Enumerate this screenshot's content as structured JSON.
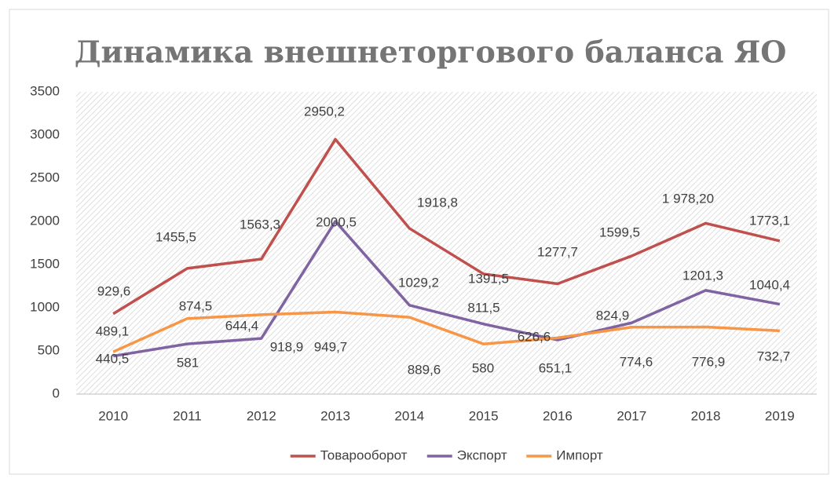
{
  "chart_data": {
    "type": "line",
    "title": "Динамика внешнеторгового баланса ЯО",
    "categories": [
      "2010",
      "2011",
      "2012",
      "2013",
      "2014",
      "2015",
      "2016",
      "2017",
      "2018",
      "2019"
    ],
    "series": [
      {
        "name": "Товарооборот",
        "color": "#c0504d",
        "values": [
          929.6,
          1455.5,
          1563.3,
          2950.2,
          1918.8,
          1391.5,
          1277.7,
          1599.5,
          1978.2,
          1773.1
        ],
        "value_labels": [
          "929,6",
          "1455,5",
          "1563,3",
          "2950,2",
          "1918,8",
          "1391,5",
          "1277,7",
          "1599,5",
          "1 978,20",
          "1773,1"
        ]
      },
      {
        "name": "Экспорт",
        "color": "#8064a2",
        "values": [
          440.5,
          581,
          644.4,
          2000.5,
          1029.2,
          811.5,
          626.6,
          824.9,
          1201.3,
          1040.4
        ],
        "value_labels": [
          "440,5",
          "581",
          "644,4",
          "2000,5",
          "1029,2",
          "811,5",
          "626,6",
          "824,9",
          "1201,3",
          "1040,4"
        ]
      },
      {
        "name": "Импорт",
        "color": "#f79646",
        "values": [
          489.1,
          874.5,
          918.9,
          949.7,
          889.6,
          580,
          651.1,
          774.6,
          776.9,
          732.7
        ],
        "value_labels": [
          "489,1",
          "874,5",
          "918,9",
          "949,7",
          "889,6",
          "580",
          "651,1",
          "774,6",
          "776,9",
          "732,7"
        ]
      }
    ],
    "ylim": [
      0,
      3500
    ],
    "yticks": [
      0,
      500,
      1000,
      1500,
      2000,
      2500,
      3000,
      3500
    ],
    "grid": false,
    "legend": "bottom"
  }
}
